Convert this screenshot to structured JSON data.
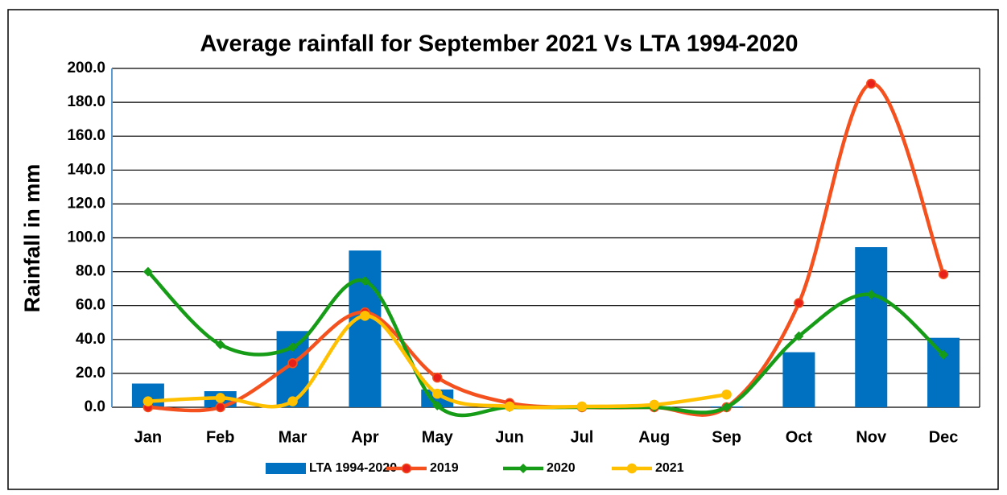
{
  "chart_data": {
    "type": "bar_line",
    "title": "Average rainfall for September 2021 Vs LTA 1994-2020",
    "y_label": "Rainfall in mm",
    "categories": [
      "Jan",
      "Feb",
      "Mar",
      "Apr",
      "May",
      "Jun",
      "Jul",
      "Aug",
      "Sep",
      "Oct",
      "Nov",
      "Dec"
    ],
    "series": [
      {
        "name": "LTA 1994-2020",
        "type": "bar",
        "color": "#0070c0",
        "values": [
          14,
          9.5,
          45,
          92.5,
          10.5,
          1,
          0.5,
          0.5,
          0.5,
          32.5,
          94.5,
          41
        ]
      },
      {
        "name": "2019",
        "type": "line",
        "marker": "circle",
        "color": "#f4511e",
        "values": [
          0,
          0,
          26,
          56,
          17.5,
          2.5,
          0,
          0,
          0,
          61.5,
          191,
          78.5
        ]
      },
      {
        "name": "2020",
        "type": "line",
        "marker": "diamond",
        "color": "#179c17",
        "values": [
          80,
          37,
          35.5,
          74.5,
          1,
          0,
          0,
          0,
          0,
          42,
          66.5,
          31
        ]
      },
      {
        "name": "2021",
        "type": "line",
        "marker": "circle",
        "color": "#ffc000",
        "values": [
          3.5,
          5.5,
          3.5,
          54,
          8,
          0.5,
          0.5,
          1.5,
          7.5,
          null,
          null,
          null
        ]
      }
    ],
    "ylim": [
      0,
      200
    ],
    "yticks": [
      {
        "value": 0,
        "label": "0.0"
      },
      {
        "value": 20,
        "label": "20.0"
      },
      {
        "value": 40,
        "label": "40.0"
      },
      {
        "value": 60,
        "label": "60.0"
      },
      {
        "value": 80,
        "label": "80.0"
      },
      {
        "value": 100,
        "label": "100.0"
      },
      {
        "value": 120,
        "label": "120.0"
      },
      {
        "value": 140,
        "label": "140.0"
      },
      {
        "value": 160,
        "label": "160.0"
      },
      {
        "value": 180,
        "label": "180.0"
      },
      {
        "value": 200,
        "label": "200.0"
      }
    ],
    "grid": true,
    "legend": "bottom"
  }
}
